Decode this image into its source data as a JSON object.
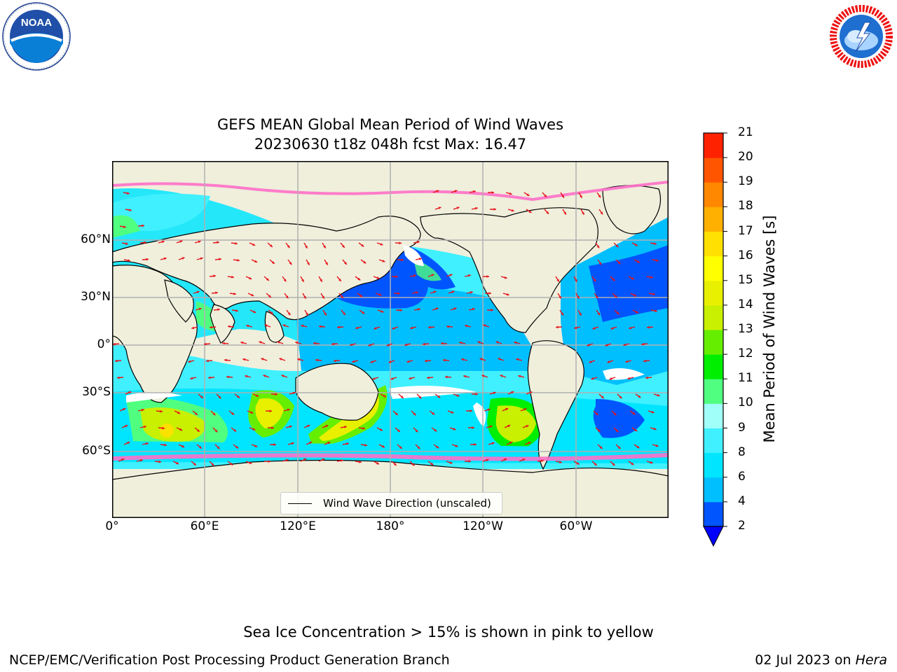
{
  "header": {
    "title_line1": "GEFS MEAN Global Mean Period of Wind Waves",
    "title_line2": "20230630 t18z 048h fcst   Max: 16.47"
  },
  "logos": {
    "noaa": {
      "text": "NOAA",
      "ring_text": "NATIONAL OCEANIC AND ATMOSPHERIC ADMINISTRATION · U.S. DEPARTMENT OF COMMERCE"
    },
    "nws": {
      "ring_text": "NATIONAL WEATHER SERVICE"
    }
  },
  "map": {
    "lon_labels": [
      "0°",
      "60°E",
      "120°E",
      "180°",
      "120°W",
      "60°W"
    ],
    "lat_labels": [
      "60°N",
      "30°N",
      "0°",
      "30°S",
      "60°S"
    ],
    "legend_label": "Wind Wave Direction (unscaled)",
    "colors": {
      "land": "#efefdc",
      "grid": "#b0b0b0",
      "arrow": "#e8141a",
      "ice": "#ff6fc8"
    }
  },
  "colorbar": {
    "label": "Mean Period of Wind Waves [s]",
    "ticks": [
      "2",
      "4",
      "6",
      "8",
      "9",
      "10",
      "11",
      "12",
      "13",
      "14",
      "15",
      "16",
      "17",
      "18",
      "19",
      "20",
      "21"
    ],
    "colors": [
      "#0055ff",
      "#00bfff",
      "#00e5ff",
      "#40f0ff",
      "#a0fff8",
      "#50ff80",
      "#00ee00",
      "#66ee00",
      "#c8f000",
      "#e8f000",
      "#ffff00",
      "#ffe000",
      "#ffb000",
      "#ff8800",
      "#ff5500",
      "#ff2200"
    ],
    "extend_color": "#0000ff"
  },
  "footer": {
    "note": "Sea Ice Concentration > 15% is shown in pink to yellow",
    "org": "NCEP/EMC/Verification Post Processing Product Generation Branch",
    "date": "02 Jul 2023 on ",
    "machine": "Hera"
  }
}
